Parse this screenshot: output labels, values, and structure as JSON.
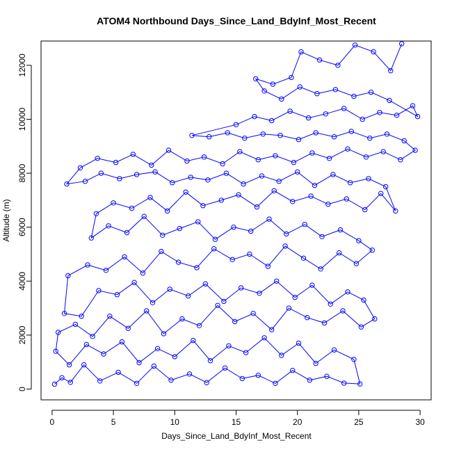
{
  "chart_data": {
    "type": "scatter",
    "title": "ATOM4 Northbound Days_Since_Land_BdyInf_Most_Recent",
    "xlabel": "Days_Since_Land_BdyInf_Most_Recent",
    "ylabel": "Altitude (m)",
    "xlim": [
      -0.9,
      30.9
    ],
    "ylim": [
      -400,
      12900
    ],
    "xticks": [
      0,
      5,
      10,
      15,
      20,
      25,
      30
    ],
    "yticks": [
      0,
      2000,
      4000,
      6000,
      8000,
      10000,
      12000
    ],
    "grid": false,
    "legend": "none",
    "point_style": "open-circle",
    "connected": true,
    "series": [
      {
        "color": "#0000ff",
        "x": [
          0.2,
          0.8,
          1.5,
          2.6,
          3.9,
          5.4,
          6.9,
          8.3,
          9.7,
          11.2,
          12.6,
          14.1,
          15.5,
          16.8,
          18.2,
          19.6,
          21.0,
          22.4,
          23.8,
          25.1,
          24.6,
          23.0,
          21.5,
          20.1,
          18.7,
          17.3,
          15.8,
          14.4,
          12.9,
          11.5,
          10.0,
          8.6,
          7.1,
          5.7,
          4.2,
          2.8,
          1.4,
          0.3,
          0.5,
          1.9,
          3.3,
          4.7,
          6.2,
          7.7,
          9.1,
          10.6,
          12.0,
          13.5,
          14.9,
          16.4,
          17.9,
          19.3,
          20.8,
          22.2,
          23.7,
          25.2,
          26.3,
          25.4,
          24.1,
          22.7,
          21.2,
          19.8,
          18.3,
          16.9,
          15.4,
          14.0,
          12.5,
          11.1,
          9.6,
          8.2,
          6.7,
          5.3,
          3.8,
          2.4,
          1.0,
          1.3,
          2.9,
          4.4,
          5.9,
          7.4,
          8.9,
          10.3,
          11.8,
          13.2,
          14.7,
          16.1,
          17.6,
          19.0,
          20.5,
          21.9,
          23.4,
          24.8,
          26.1,
          25.0,
          23.5,
          22.0,
          20.6,
          19.1,
          17.7,
          16.2,
          14.8,
          13.3,
          11.9,
          10.4,
          9.0,
          7.5,
          6.1,
          4.6,
          3.2,
          3.6,
          5.0,
          6.5,
          8.0,
          9.4,
          10.9,
          12.3,
          13.8,
          15.2,
          16.7,
          18.1,
          19.6,
          21.1,
          22.5,
          24.0,
          25.5,
          26.8,
          28.0,
          27.2,
          25.8,
          24.3,
          22.9,
          21.4,
          20.0,
          18.5,
          17.1,
          15.6,
          14.2,
          12.7,
          11.3,
          9.8,
          8.4,
          6.9,
          5.5,
          4.0,
          2.7,
          1.2,
          2.3,
          3.7,
          5.2,
          6.6,
          8.1,
          9.5,
          11.0,
          12.4,
          13.9,
          15.3,
          16.8,
          18.2,
          19.7,
          21.2,
          22.6,
          24.1,
          25.6,
          27.0,
          28.4,
          29.6,
          28.7,
          27.3,
          25.9,
          24.4,
          23.0,
          21.5,
          20.1,
          18.6,
          17.2,
          15.7,
          14.3,
          12.8,
          11.4,
          15.0,
          16.5,
          17.9,
          19.4,
          20.9,
          22.3,
          23.8,
          25.3,
          26.7,
          28.1,
          29.4,
          29.8,
          27.5,
          26.0,
          24.6,
          23.1,
          21.6,
          20.2,
          18.7,
          17.3,
          16.6,
          18.0,
          19.5,
          20.3,
          21.8,
          23.3,
          24.7,
          26.2,
          27.6,
          28.5
        ],
        "y": [
          180,
          420,
          250,
          900,
          300,
          620,
          210,
          850,
          330,
          560,
          240,
          780,
          390,
          510,
          210,
          690,
          330,
          470,
          220,
          190,
          1100,
          1450,
          950,
          1700,
          1250,
          1900,
          1350,
          1600,
          1050,
          1800,
          1200,
          1500,
          980,
          1750,
          1300,
          1650,
          900,
          1400,
          2100,
          2400,
          1950,
          2700,
          2250,
          2900,
          2050,
          2600,
          2350,
          3100,
          2500,
          2800,
          2200,
          3000,
          2650,
          2450,
          2900,
          2300,
          2600,
          3300,
          3600,
          3150,
          3850,
          3400,
          4000,
          3550,
          3750,
          3250,
          3900,
          3450,
          3700,
          3200,
          3950,
          3500,
          3650,
          2700,
          2800,
          4200,
          4600,
          4400,
          4900,
          4300,
          5100,
          4700,
          4500,
          5200,
          4800,
          5000,
          4550,
          5300,
          4850,
          4450,
          5050,
          4650,
          5150,
          5500,
          5900,
          5650,
          6100,
          5750,
          6300,
          5850,
          6000,
          5550,
          6200,
          5950,
          5700,
          6400,
          5800,
          6050,
          5600,
          6500,
          6900,
          6700,
          7100,
          6600,
          7300,
          6800,
          7000,
          7200,
          6750,
          7350,
          6950,
          7150,
          6850,
          7050,
          6650,
          7250,
          6600,
          7500,
          7800,
          7650,
          7950,
          7550,
          8050,
          7700,
          7900,
          7600,
          8000,
          7750,
          7850,
          7650,
          8050,
          7950,
          7800,
          8000,
          7700,
          7600,
          8200,
          8550,
          8400,
          8700,
          8300,
          8850,
          8450,
          8600,
          8350,
          8800,
          8500,
          8650,
          8400,
          8750,
          8550,
          8900,
          8600,
          8800,
          8500,
          8850,
          9200,
          9450,
          9300,
          9550,
          9350,
          9500,
          9250,
          9400,
          9450,
          9300,
          9500,
          9350,
          9400,
          9800,
          10100,
          9950,
          10300,
          10050,
          10200,
          10400,
          10000,
          10250,
          10150,
          10500,
          10100,
          10700,
          11000,
          10850,
          11100,
          10950,
          11200,
          10750,
          11050,
          11500,
          11300,
          11550,
          12500,
          12200,
          12000,
          12750,
          12500,
          11800,
          12800
        ]
      }
    ]
  }
}
